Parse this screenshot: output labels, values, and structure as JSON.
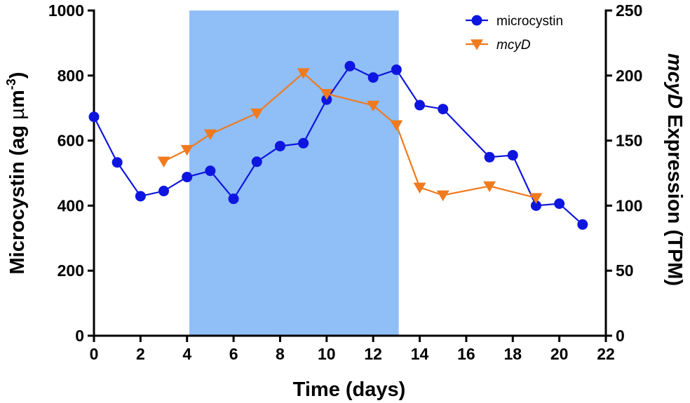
{
  "chart_data": {
    "type": "line",
    "x_axis": {
      "title": "Time (days)",
      "range": [
        0,
        22
      ],
      "ticks": [
        0,
        2,
        4,
        6,
        8,
        10,
        12,
        14,
        16,
        18,
        20,
        22
      ]
    },
    "y_left": {
      "title_main": "Microcystin (ag ",
      "title_unit_mu": "µ",
      "title_unit_m": "m",
      "title_sup": "-3",
      "title_close": ")",
      "range": [
        0,
        1000
      ],
      "ticks": [
        0,
        200,
        400,
        600,
        800,
        1000
      ]
    },
    "y_right": {
      "title_gene": "mcyD",
      "title_rest": " Expression (TPM)",
      "range": [
        0,
        250
      ],
      "ticks": [
        0,
        50,
        100,
        150,
        200,
        250
      ]
    },
    "shaded_region": {
      "x_start": 4.1,
      "x_end": 13.1,
      "color": "#90BEF7"
    },
    "series": [
      {
        "name": "microcystin",
        "axis": "left",
        "color": "#0E15E0",
        "marker": "circle",
        "x": [
          0,
          1,
          2,
          3,
          4,
          5,
          6,
          7,
          8,
          9,
          10,
          11,
          12,
          13,
          14,
          15,
          17,
          18,
          19,
          20,
          21
        ],
        "y": [
          673,
          533,
          429,
          445,
          488,
          507,
          421,
          535,
          583,
          592,
          726,
          829,
          794,
          818,
          709,
          697,
          549,
          555,
          400,
          406,
          342
        ]
      },
      {
        "name": "mcyD",
        "axis": "right",
        "color": "#F07A1E",
        "marker": "triangle-down",
        "x": [
          3,
          4,
          5,
          7,
          9,
          10,
          12,
          13,
          14,
          15,
          17,
          19
        ],
        "y": [
          134,
          143,
          155,
          171,
          202,
          186,
          177,
          162,
          114,
          108,
          115,
          106
        ]
      }
    ],
    "legend": {
      "position": "top-right",
      "entries": [
        "microcystin",
        "mcyD"
      ]
    }
  }
}
